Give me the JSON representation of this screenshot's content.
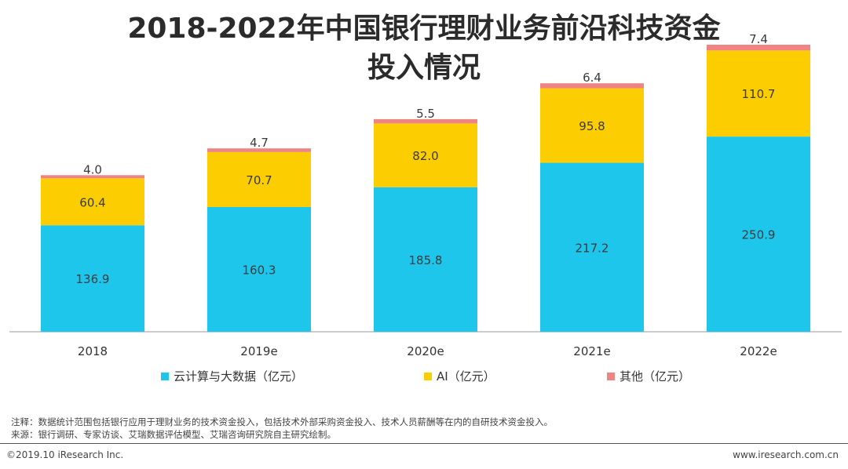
{
  "title_line1": "2018-2022年中国银行理财业务前沿科技资金",
  "title_line2": "投入情况",
  "chart_data": {
    "type": "bar",
    "stacked": true,
    "title": "2018-2022年中国银行理财业务前沿科技资金投入情况",
    "categories": [
      "2018",
      "2019e",
      "2020e",
      "2021e",
      "2022e"
    ],
    "series": [
      {
        "name": "云计算与大数据（亿元）",
        "color": "#1fc6ec",
        "values": [
          136.9,
          160.3,
          185.8,
          217.2,
          250.9
        ],
        "labels": [
          "136.9",
          "160.3",
          "185.8",
          "217.2",
          "250.9"
        ]
      },
      {
        "name": "AI（亿元）",
        "color": "#fccd00",
        "values": [
          60.4,
          70.7,
          82.0,
          95.8,
          110.7
        ],
        "labels": [
          "60.4",
          "70.7",
          "82.0",
          "95.8",
          "110.7"
        ]
      },
      {
        "name": "其他（亿元）",
        "color": "#f08484",
        "values": [
          4.0,
          4.7,
          5.5,
          6.4,
          7.4
        ],
        "labels": [
          "4.0",
          "4.7",
          "5.5",
          "6.4",
          "7.4"
        ]
      }
    ],
    "ylim": [
      0,
      370
    ],
    "grid": false,
    "legend": "bottom"
  },
  "notes": {
    "note": "注释：数据统计范围包括银行应用于理财业务的技术资金投入，包括技术外部采购资金投入、技术人员薪酬等在内的自研技术资金投入。",
    "source": "来源：银行调研、专家访谈、艾瑞数据评估模型、艾瑞咨询研究院自主研究绘制。"
  },
  "footer": {
    "copyright": "©2019.10 iResearch Inc.",
    "website": "www.iresearch.com.cn"
  }
}
